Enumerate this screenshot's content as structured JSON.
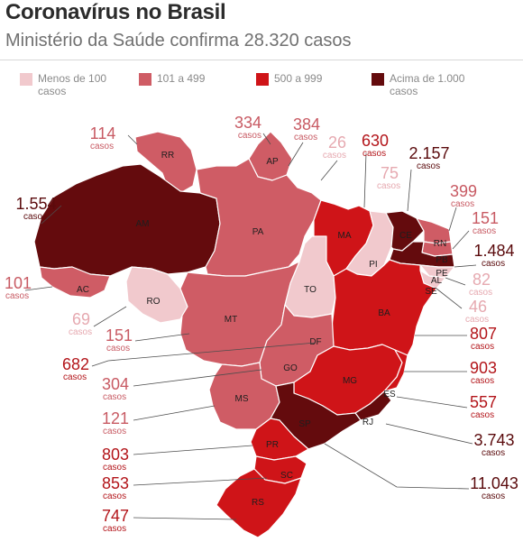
{
  "header": {
    "title": "Coronavírus no Brasil",
    "subtitle": "Ministério da Saúde confirma 28.320 casos"
  },
  "legend": [
    {
      "label": "Menos de 100 casos",
      "color": "#f1c9cd"
    },
    {
      "label": "101 a 499",
      "color": "#cf5c65"
    },
    {
      "label": "500 a 999",
      "color": "#cf1418"
    },
    {
      "label": "Acima de 1.000 casos",
      "color": "#640b0d"
    }
  ],
  "unit_word": "casos",
  "states": [
    {
      "uf": "AM",
      "cases": "1.554",
      "color": "#640b0d"
    },
    {
      "uf": "RR",
      "cases": "114",
      "color": "#cf5c65"
    },
    {
      "uf": "AP",
      "cases": "334",
      "color": "#cf5c65"
    },
    {
      "uf": "PA",
      "cases": "384",
      "color": "#cf5c65"
    },
    {
      "uf": "MA",
      "cases": "630",
      "color": "#cf1418"
    },
    {
      "uf": "PI",
      "cases": "26",
      "color": "#f1c9cd"
    },
    {
      "uf": "CE",
      "cases": "2.157",
      "color": "#640b0d"
    },
    {
      "uf": "RN",
      "cases": "399",
      "color": "#cf5c65"
    },
    {
      "uf": "PB",
      "cases": "151",
      "color": "#cf5c65"
    },
    {
      "uf": "PE",
      "cases": "1.484",
      "color": "#640b0d"
    },
    {
      "uf": "AL",
      "cases": "82",
      "color": "#f1c9cd"
    },
    {
      "uf": "SE",
      "cases": "46",
      "color": "#f1c9cd"
    },
    {
      "uf": "TO",
      "cases": "75",
      "color": "#f1c9cd"
    },
    {
      "uf": "AC",
      "cases": "101",
      "color": "#cf5c65"
    },
    {
      "uf": "RO",
      "cases": "69",
      "color": "#f1c9cd"
    },
    {
      "uf": "MT",
      "cases": "151",
      "color": "#cf5c65"
    },
    {
      "uf": "DF",
      "cases": "682",
      "color": "#cf1418"
    },
    {
      "uf": "GO",
      "cases": "304",
      "color": "#cf5c65"
    },
    {
      "uf": "MS",
      "cases": "121",
      "color": "#cf5c65"
    },
    {
      "uf": "BA",
      "cases": "807",
      "color": "#cf1418"
    },
    {
      "uf": "MG",
      "cases": "903",
      "color": "#cf1418"
    },
    {
      "uf": "ES",
      "cases": "557",
      "color": "#cf1418"
    },
    {
      "uf": "RJ",
      "cases": "3.743",
      "color": "#640b0d"
    },
    {
      "uf": "SP",
      "cases": "11.043",
      "color": "#640b0d"
    },
    {
      "uf": "PR",
      "cases": "803",
      "color": "#cf1418"
    },
    {
      "uf": "SC",
      "cases": "853",
      "color": "#cf1418"
    },
    {
      "uf": "RS",
      "cases": "747",
      "color": "#cf1418"
    }
  ]
}
